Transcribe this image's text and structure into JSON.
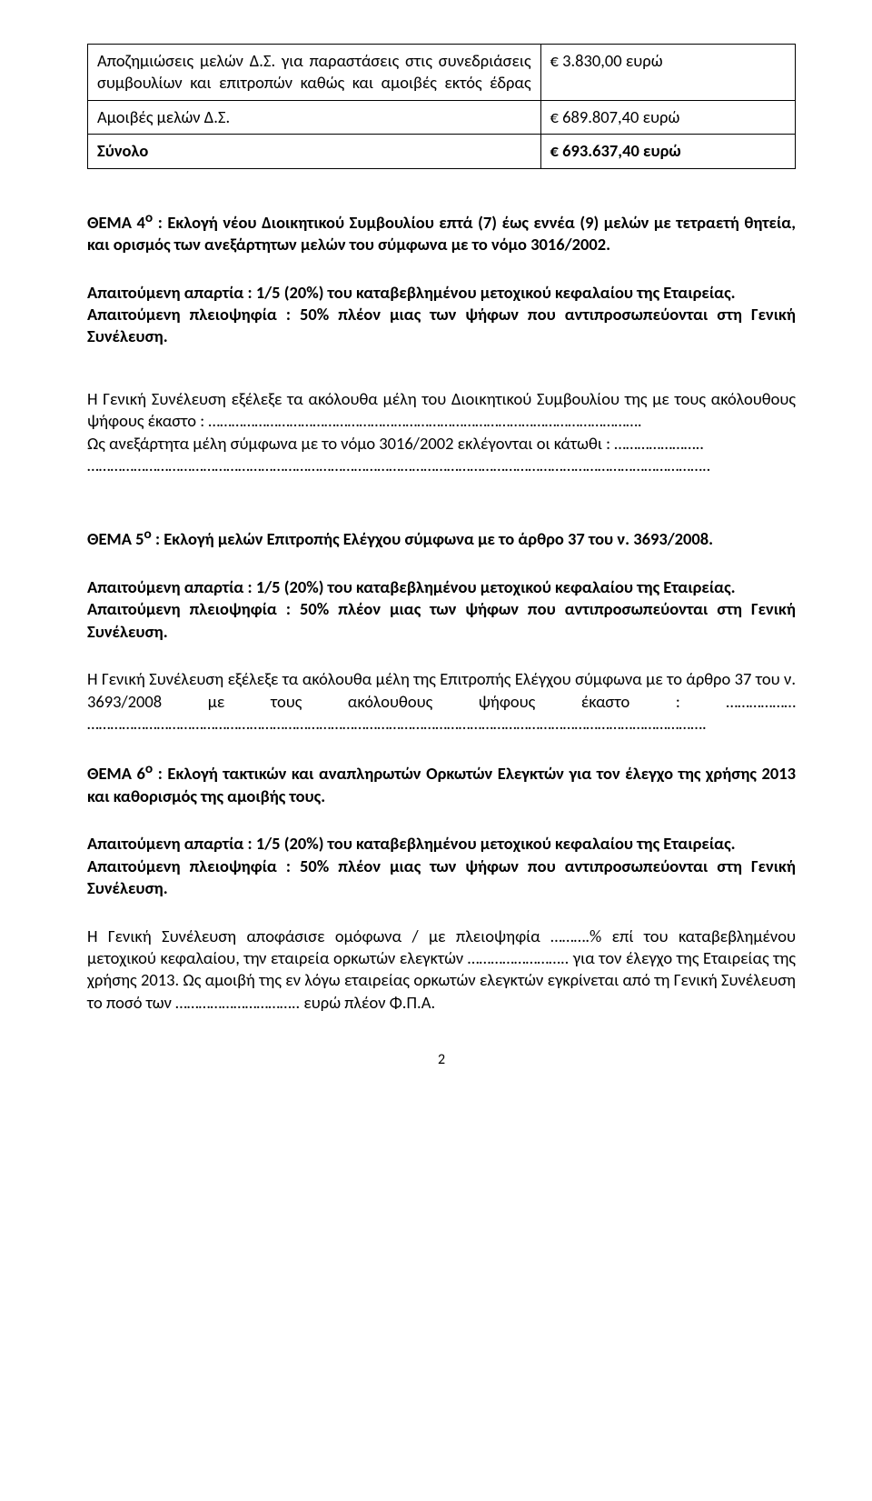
{
  "table": {
    "rows": [
      {
        "left": "Αποζημιώσεις μελών Δ.Σ. για παραστάσεις στις συνεδριάσεις συμβουλίων και επιτροπών καθώς και αμοιβές εκτός έδρας",
        "right": "€ 3.830,00 ευρώ",
        "left_justify_last": true
      },
      {
        "left": "Αμοιβές μελών Δ.Σ.",
        "right": "€ 689.807,40 ευρώ",
        "left_justify_last": false
      },
      {
        "left": "Σύνολο",
        "right": "€ 693.637,40 ευρώ",
        "left_bold": true,
        "right_bold": true
      }
    ]
  },
  "thema4": {
    "title_prefix": "ΘΕΜΑ 4",
    "title_sup": "ο",
    "title_rest": " : Εκλογή νέου Διοικητικού Συμβουλίου επτά (7) έως εννέα (9) μελών με τετραετή θητεία, και ορισμός των ανεξάρτητων μελών του σύμφωνα με το νόμο 3016/2002.",
    "quorum": "Απαιτούμενη απαρτία : 1/5 (20%) του καταβεβλημένου μετοχικού κεφαλαίου της Εταιρείας.",
    "majority": "Απαιτούμενη πλειοψηφία : 50% πλέον μιας των ψήφων που αντιπροσωπεύονται στη Γενική Συνέλευση.",
    "body1": "Η Γενική Συνέλευση εξέλεξε τα ακόλουθα μέλη του Διοικητικού Συμβουλίου της  με τους ακόλουθους ψήφους έκαστο : ………………………………………………………………………………………………….",
    "body2": "Ως ανεξάρτητα μέλη σύμφωνα με το νόμο 3016/2002 εκλέγονται οι κάτωθι : …………………..",
    "body3": "…………………………………………………………………………………………………………………………………………….."
  },
  "thema5": {
    "title_prefix": "ΘΕΜΑ 5",
    "title_sup": "ο",
    "title_rest": " : Εκλογή μελών Επιτροπής Ελέγχου σύμφωνα με το άρθρο 37 του ν. 3693/2008.",
    "quorum": "Απαιτούμενη απαρτία : 1/5 (20%) του καταβεβλημένου μετοχικού κεφαλαίου της Εταιρείας.",
    "majority": "Απαιτούμενη πλειοψηφία : 50% πλέον μιας των ψήφων που αντιπροσωπεύονται στη Γενική Συνέλευση.",
    "body1": "Η Γενική Συνέλευση εξέλεξε τα ακόλουθα μέλη  της  Επιτροπής Ελέγχου σύμφωνα με το άρθρο 37 του ν. 3693/2008 με τους ακόλουθους ψήφους έκαστο : ……………… ……………………………………………………………………………………………………………………………………………."
  },
  "thema6": {
    "title_prefix": "ΘΕΜΑ 6",
    "title_sup": "ο",
    "title_rest": " :  Εκλογή τακτικών και αναπληρωτών Ορκωτών Ελεγκτών για τον έλεγχο της χρήσης 2013 και καθορισμός της αμοιβής τους.",
    "quorum": "Απαιτούμενη απαρτία : 1/5 (20%) του καταβεβλημένου μετοχικού κεφαλαίου της Εταιρείας.",
    "majority": "Απαιτούμενη πλειοψηφία : 50% πλέον μιας των ψήφων που αντιπροσωπεύονται στη Γενική Συνέλευση.",
    "body": "Η Γενική Συνέλευση αποφάσισε ομόφωνα / με πλειοψηφία ……….% επί του καταβεβλημένου μετοχικού κεφαλαίου,  την εταιρεία ορκωτών ελεγκτών …………………….. για τον έλεγχο της Εταιρείας της χρήσης 2013. Ως αμοιβή της εν λόγω εταιρείας ορκωτών ελεγκτών εγκρίνεται από τη Γενική Συνέλευση το ποσό των ………………………….. ευρώ πλέον Φ.Π.Α."
  },
  "page_number": "2"
}
